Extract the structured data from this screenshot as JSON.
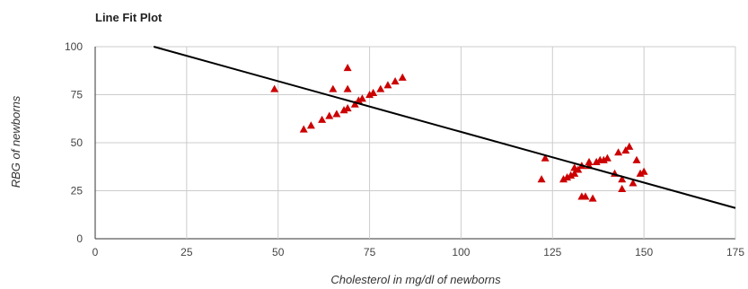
{
  "chart_data": {
    "type": "scatter",
    "title": "Line Fit Plot",
    "xlabel": "Cholesterol in mg/dl of newborns",
    "ylabel": "RBG of newborns",
    "xlim": [
      0,
      175
    ],
    "ylim": [
      0,
      100
    ],
    "x_ticks": [
      0,
      25,
      50,
      75,
      100,
      125,
      150,
      175
    ],
    "y_ticks": [
      0,
      25,
      50,
      75,
      100
    ],
    "grid": true,
    "legend": "none",
    "marker_color": "#cc0000",
    "line_color": "#000000",
    "series": [
      {
        "marker": "triangle",
        "points": [
          [
            49,
            78
          ],
          [
            57,
            57
          ],
          [
            59,
            59
          ],
          [
            62,
            62
          ],
          [
            64,
            64
          ],
          [
            65,
            78
          ],
          [
            66,
            65
          ],
          [
            68,
            67
          ],
          [
            69,
            68
          ],
          [
            69,
            89
          ],
          [
            69,
            78
          ],
          [
            71,
            70
          ],
          [
            72,
            72
          ],
          [
            73,
            73
          ],
          [
            75,
            75
          ],
          [
            76,
            76
          ],
          [
            78,
            78
          ],
          [
            80,
            80
          ],
          [
            82,
            82
          ],
          [
            84,
            84
          ],
          [
            122,
            31
          ],
          [
            123,
            42
          ],
          [
            128,
            31
          ],
          [
            129,
            32
          ],
          [
            130,
            33
          ],
          [
            131,
            34
          ],
          [
            131,
            37
          ],
          [
            132,
            36
          ],
          [
            133,
            22
          ],
          [
            133,
            38
          ],
          [
            134,
            22
          ],
          [
            135,
            38
          ],
          [
            135,
            40
          ],
          [
            136,
            21
          ],
          [
            137,
            40
          ],
          [
            138,
            41
          ],
          [
            139,
            41
          ],
          [
            140,
            42
          ],
          [
            142,
            34
          ],
          [
            143,
            45
          ],
          [
            144,
            31
          ],
          [
            144,
            26
          ],
          [
            145,
            46
          ],
          [
            146,
            48
          ],
          [
            147,
            29
          ],
          [
            148,
            41
          ],
          [
            149,
            34
          ],
          [
            150,
            35
          ]
        ]
      },
      {
        "type": "line",
        "points": [
          [
            16,
            100
          ],
          [
            175,
            16
          ]
        ]
      }
    ]
  }
}
